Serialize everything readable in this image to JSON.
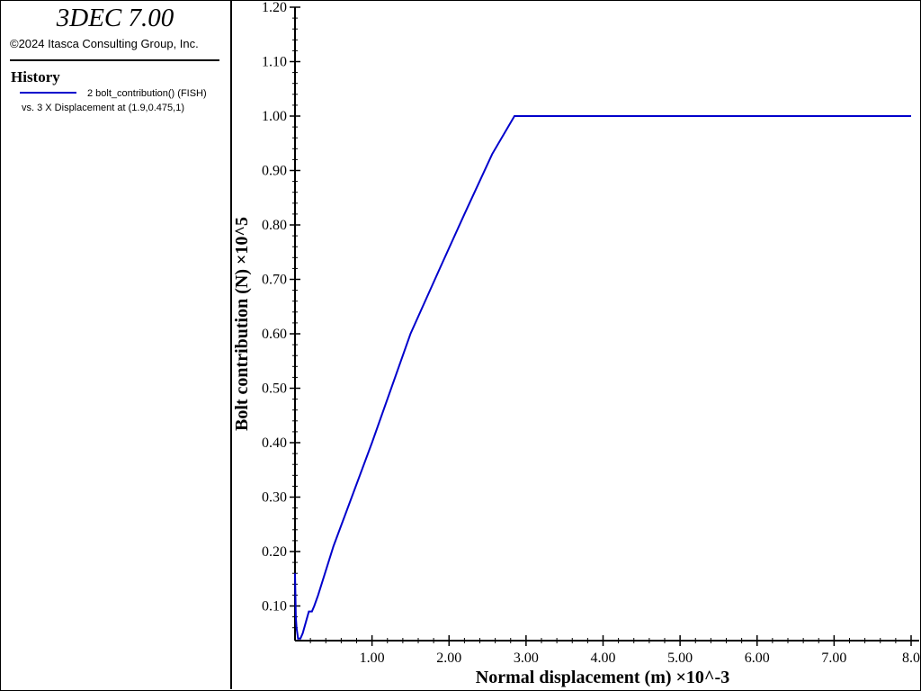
{
  "app": {
    "title": "3DEC 7.00",
    "copyright": "©2024 Itasca Consulting Group, Inc."
  },
  "legend": {
    "title": "History",
    "entry_line1": "2 bolt_contribution() (FISH)",
    "entry_line2": "vs. 3 X Displacement at (1.9,0.475,1)",
    "color": "#0000cc"
  },
  "chart_data": {
    "type": "line",
    "xlabel": "Normal displacement (m) ×10^-3",
    "ylabel": "Bolt contribution (N) ×10^5",
    "xlim": [
      0,
      8.0
    ],
    "ylim": [
      0.04,
      1.2
    ],
    "x_ticks": [
      1.0,
      2.0,
      3.0,
      4.0,
      5.0,
      6.0,
      7.0,
      8.0
    ],
    "x_tick_labels": [
      "1.00",
      "2.00",
      "3.00",
      "4.00",
      "5.00",
      "6.00",
      "7.00",
      "8.0"
    ],
    "y_ticks": [
      0.1,
      0.2,
      0.3,
      0.4,
      0.5,
      0.6,
      0.7,
      0.8,
      0.9,
      1.0,
      1.1,
      1.2
    ],
    "y_tick_labels": [
      "0.10",
      "0.20",
      "0.30",
      "0.40",
      "0.50",
      "0.60",
      "0.70",
      "0.80",
      "0.90",
      "1.00",
      "1.10",
      "1.20"
    ],
    "grid": false,
    "series": [
      {
        "color": "#0000cc",
        "x": [
          0.0,
          0.01,
          0.02,
          0.04,
          0.07,
          0.1,
          0.14,
          0.18,
          0.22,
          0.25,
          0.3,
          0.5,
          1.0,
          1.5,
          1.88,
          2.2,
          2.56,
          2.85,
          2.9,
          3.5,
          4.0,
          4.5,
          5.0,
          5.5,
          6.0,
          6.5,
          7.0,
          7.5,
          8.0
        ],
        "y": [
          0.16,
          0.08,
          0.06,
          0.04,
          0.04,
          0.05,
          0.07,
          0.09,
          0.09,
          0.1,
          0.12,
          0.21,
          0.4,
          0.6,
          0.72,
          0.82,
          0.93,
          1.0,
          1.0,
          1.0,
          1.0,
          1.0,
          1.0,
          1.0,
          1.0,
          1.0,
          1.0,
          1.0,
          1.0
        ]
      }
    ]
  }
}
